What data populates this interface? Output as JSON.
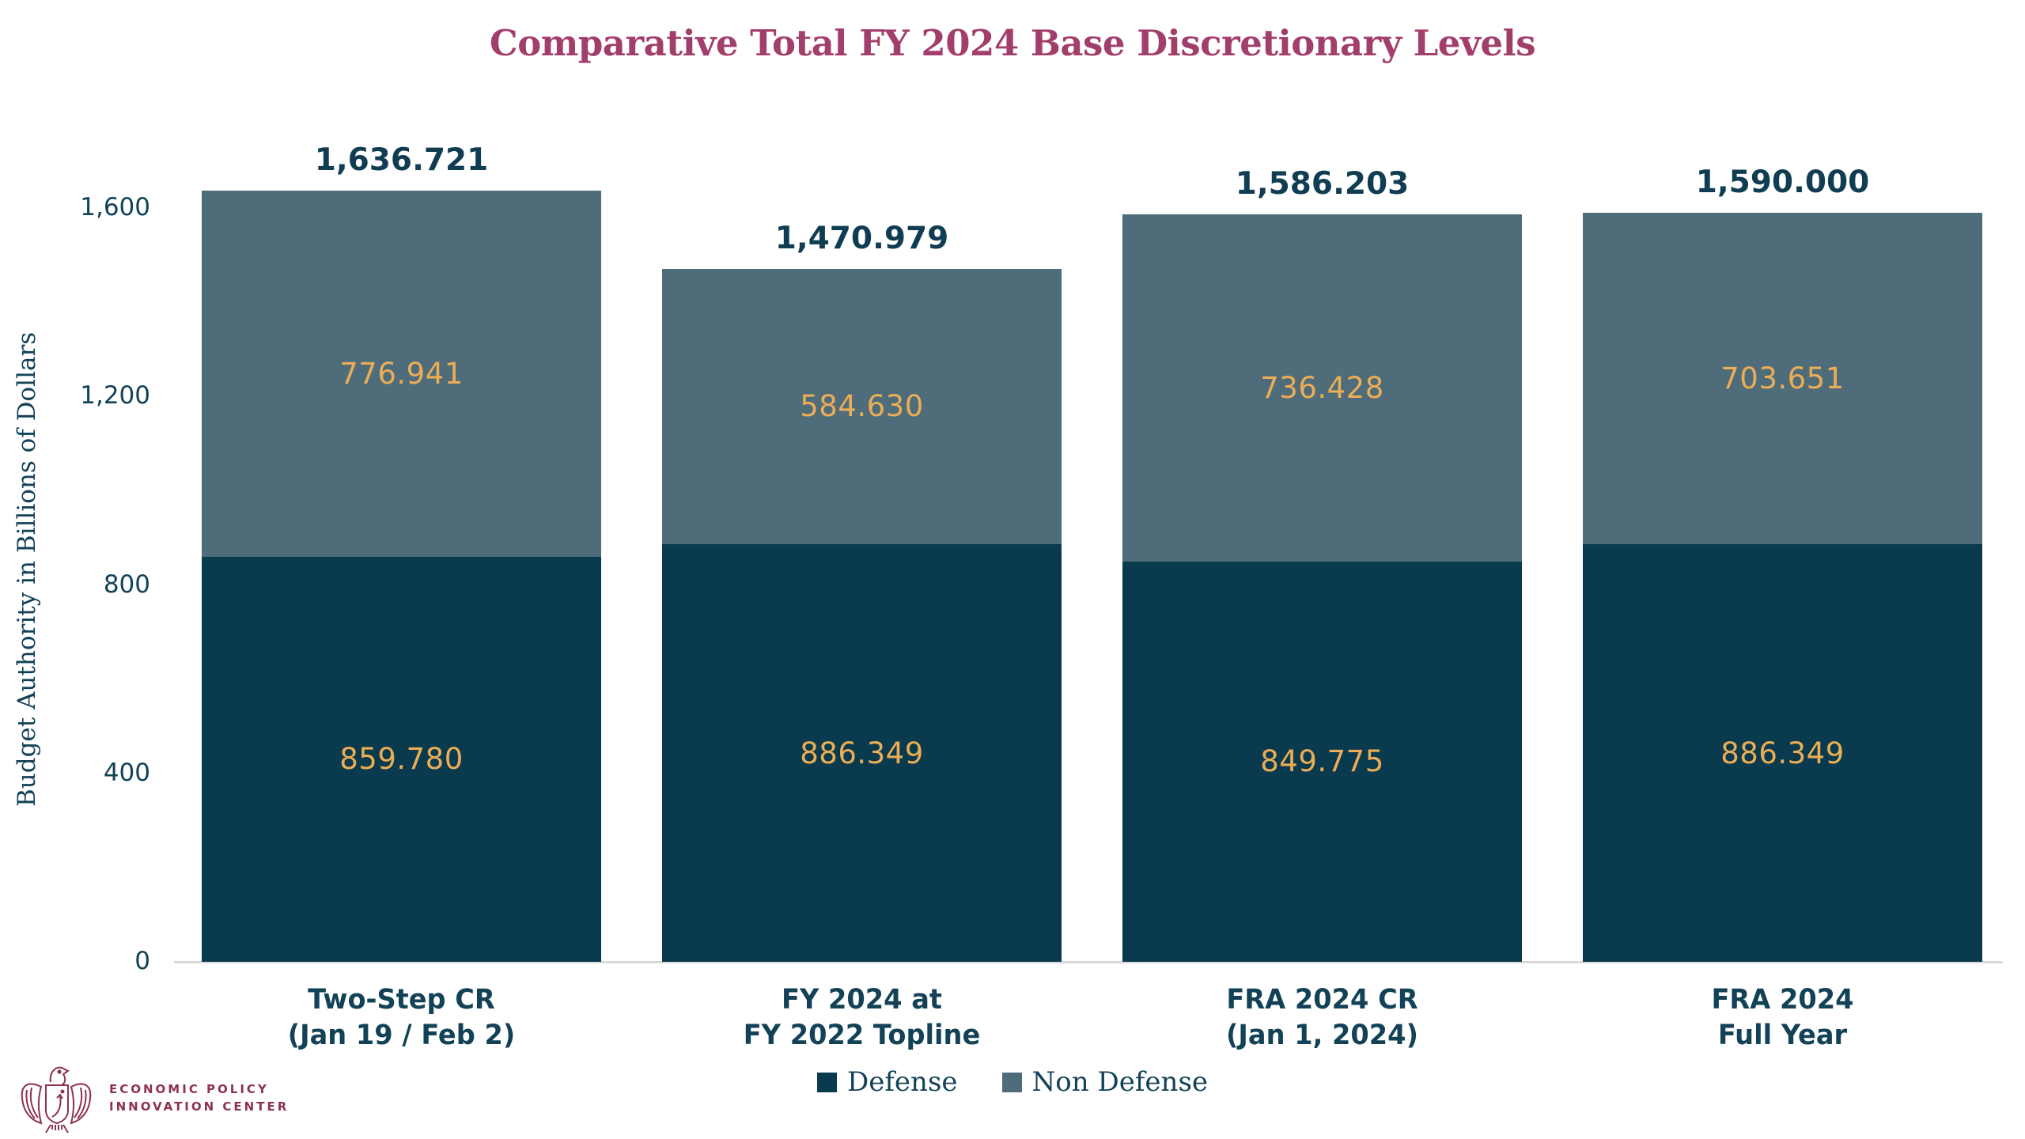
{
  "title": "Comparative Total FY 2024 Base Discretionary Levels",
  "colors": {
    "title_maroon": "#A23E6B",
    "axis_navy": "#134257",
    "total_navy": "#103D52",
    "value_gold": "#EBAD55",
    "defense": "#093A4E",
    "non_defense": "#4F6C7A",
    "axis_line": "#D9D9D9",
    "logo_maroon": "#8E3156"
  },
  "logo": {
    "line1": "ECONOMIC POLICY",
    "line2": "INNOVATION CENTER"
  },
  "chart_data": {
    "type": "bar",
    "stacked": true,
    "title": "Comparative Total FY 2024 Base Discretionary Levels",
    "ylabel": "Budget Authority in Billions of Dollars",
    "xlabel": "",
    "ylim": [
      0,
      1600
    ],
    "grid": false,
    "legend_position": "bottom",
    "categories": [
      [
        "Two-Step CR",
        "(Jan 19 / Feb 2)"
      ],
      [
        "FY 2024 at",
        "FY 2022 Topline"
      ],
      [
        "FRA 2024 CR",
        "(Jan 1, 2024)"
      ],
      [
        "FRA 2024",
        "Full Year"
      ]
    ],
    "series": [
      {
        "name": "Defense",
        "color": "#093A4E",
        "values": [
          859.78,
          886.349,
          849.775,
          886.349
        ],
        "labels": [
          "859.780",
          "886.349",
          "849.775",
          "886.349"
        ]
      },
      {
        "name": "Non Defense",
        "color": "#4F6C7A",
        "values": [
          776.941,
          584.63,
          736.428,
          703.651
        ],
        "labels": [
          "776.941",
          "584.630",
          "736.428",
          "703.651"
        ]
      }
    ],
    "totals": [
      "1,636.721",
      "1,470.979",
      "1,586.203",
      "1,590.000"
    ],
    "yticks": [
      {
        "v": 0,
        "label": "0"
      },
      {
        "v": 400,
        "label": "400"
      },
      {
        "v": 800,
        "label": "800"
      },
      {
        "v": 1200,
        "label": "1,200"
      },
      {
        "v": 1600,
        "label": "1,600"
      }
    ]
  }
}
